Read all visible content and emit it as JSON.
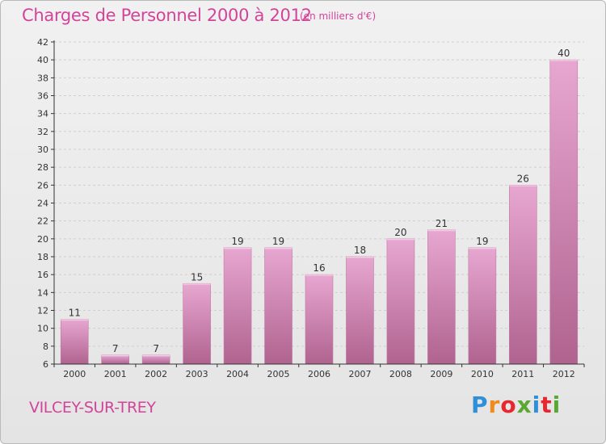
{
  "header": {
    "title": "Charges de Personnel 2000 à 2012",
    "subtitle": "(en milliers d'€)"
  },
  "footer": {
    "place": "VILCEY-SUR-TREY",
    "logo_text": "Proxiti"
  },
  "colors": {
    "title": "#d2449a",
    "bar_top": "#e7a7d1",
    "bar_bottom": "#b0638f",
    "axis": "#333333",
    "grid": "#cfcfcf"
  },
  "chart_data": {
    "type": "bar",
    "categories": [
      "2000",
      "2001",
      "2002",
      "2003",
      "2004",
      "2005",
      "2006",
      "2007",
      "2008",
      "2009",
      "2010",
      "2011",
      "2012"
    ],
    "values": [
      11,
      7,
      7,
      15,
      19,
      19,
      16,
      18,
      20,
      21,
      19,
      26,
      40
    ],
    "ylim": [
      6,
      42
    ],
    "yticks": [
      6,
      8,
      10,
      12,
      14,
      16,
      18,
      20,
      22,
      24,
      26,
      28,
      30,
      32,
      34,
      36,
      38,
      40,
      42
    ],
    "grid": "horizontal dashed",
    "data_labels": true
  }
}
